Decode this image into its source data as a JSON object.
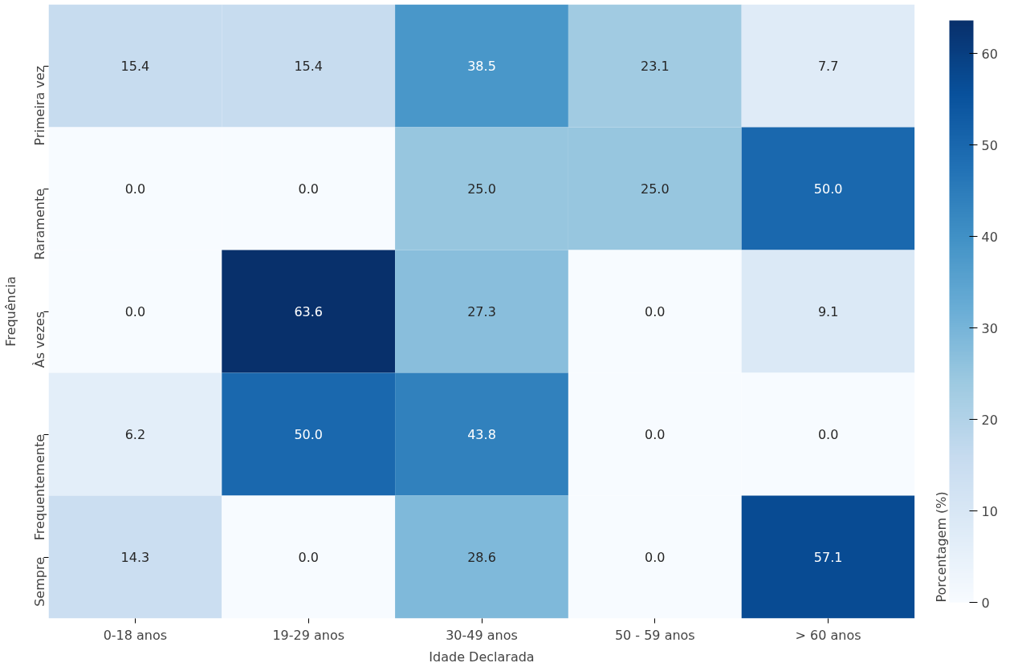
{
  "chart_data": {
    "type": "heatmap",
    "xlabel": "Idade Declarada",
    "ylabel": "Frequência",
    "clabel": "Porcentagem (%)",
    "categories": [
      "0-18 anos",
      "19-29 anos",
      "30-49 anos",
      "50 - 59 anos",
      "> 60 anos"
    ],
    "y_categories": [
      "Primeira vez",
      "Raramente",
      "Às vezes",
      "Frequentemente",
      "Sempre"
    ],
    "cells": [
      [
        15.4,
        15.4,
        38.5,
        23.1,
        7.7
      ],
      [
        0.0,
        0.0,
        25.0,
        25.0,
        50.0
      ],
      [
        0.0,
        63.6,
        27.3,
        0.0,
        9.1
      ],
      [
        6.2,
        50.0,
        43.8,
        0.0,
        0.0
      ],
      [
        14.3,
        0.0,
        28.6,
        0.0,
        57.1
      ]
    ],
    "cell_labels": [
      [
        "15.4",
        "15.4",
        "38.5",
        "23.1",
        "7.7"
      ],
      [
        "0.0",
        "0.0",
        "25.0",
        "25.0",
        "50.0"
      ],
      [
        "0.0",
        "63.6",
        "27.3",
        "0.0",
        "9.1"
      ],
      [
        "6.2",
        "50.0",
        "43.8",
        "0.0",
        "0.0"
      ],
      [
        "14.3",
        "0.0",
        "28.6",
        "0.0",
        "57.1"
      ]
    ],
    "clim": [
      0,
      63.6
    ],
    "cticks": [
      0,
      10,
      20,
      30,
      40,
      50,
      60
    ],
    "grid": false
  }
}
